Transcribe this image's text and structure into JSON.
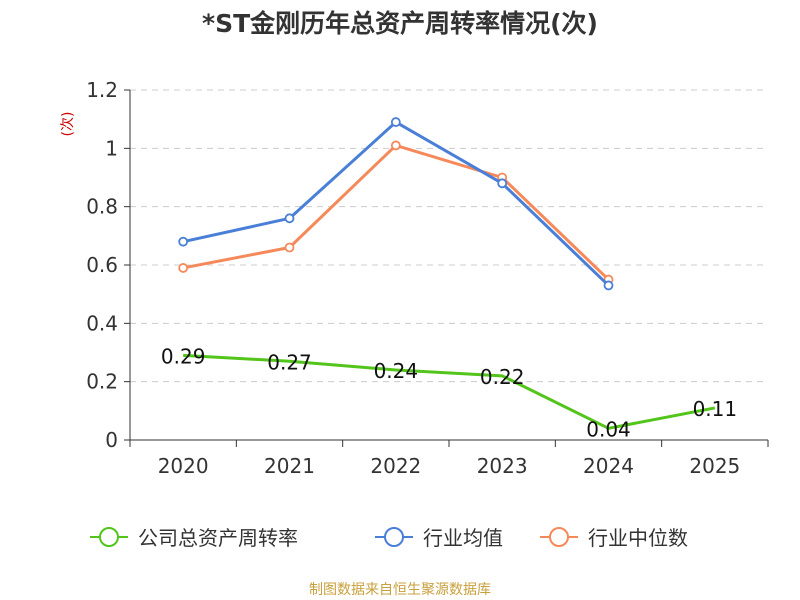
{
  "chart_data": {
    "type": "line",
    "title": "*ST金刚历年总资产周转率情况(次)",
    "ylabel": "(次)",
    "ylim": [
      0,
      1.2
    ],
    "y_ticks": [
      "0",
      "0.2",
      "0.4",
      "0.6",
      "0.8",
      "1",
      "1.2"
    ],
    "categories": [
      "2020",
      "2021",
      "2022",
      "2023",
      "2024",
      "2025"
    ],
    "grid": true,
    "legend_position": "bottom",
    "series": [
      {
        "name": "公司总资产周转率",
        "color": "#52c41a",
        "values": [
          0.29,
          0.27,
          0.24,
          0.22,
          0.04,
          0.11
        ],
        "labels": [
          "0.29",
          "0.27",
          "0.24",
          "0.22",
          "0.04",
          "0.11"
        ]
      },
      {
        "name": "行业均值",
        "color": "#4a7fd8",
        "values": [
          0.68,
          0.76,
          1.09,
          0.88,
          0.53,
          null
        ]
      },
      {
        "name": "行业中位数",
        "color": "#f5895a",
        "values": [
          0.59,
          0.66,
          1.01,
          0.9,
          0.55,
          null
        ]
      }
    ],
    "source": "制图数据来自恒生聚源数据库"
  }
}
